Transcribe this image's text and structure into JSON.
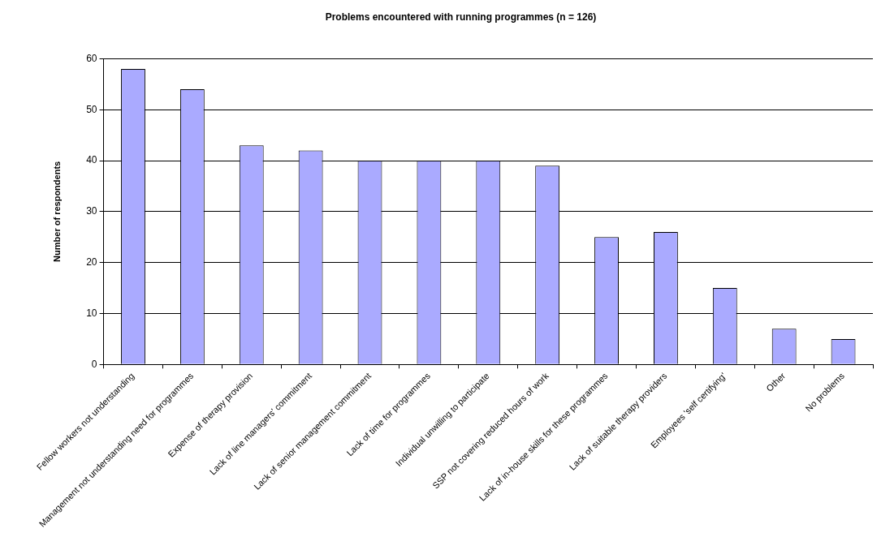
{
  "chart_data": {
    "type": "bar",
    "title": "Problems encountered with running programmes (n = 126)",
    "ylabel": "Number of respondents",
    "categories": [
      "Fellow workers not understanding",
      "Management not understanding need for programmes",
      "Expense of therapy provision",
      "Lack of line managers' commitment",
      "Lack of senior management commitment",
      "Lack of time for programmes",
      "Individual unwilling to participate",
      "SSP not covering reduced hours of work",
      "Lack of in-house skills for these programmes",
      "Lack of suitable therapy providers",
      "Employees 'self certifying'",
      "Other",
      "No problems"
    ],
    "values": [
      58,
      54,
      43,
      42,
      40,
      40,
      40,
      39,
      25,
      26,
      15,
      7,
      5
    ],
    "color": "#aaaaff",
    "ylim": [
      0,
      60
    ],
    "yticks": [
      0,
      10,
      20,
      30,
      40,
      50,
      60
    ],
    "grid": "y",
    "legend": false
  }
}
